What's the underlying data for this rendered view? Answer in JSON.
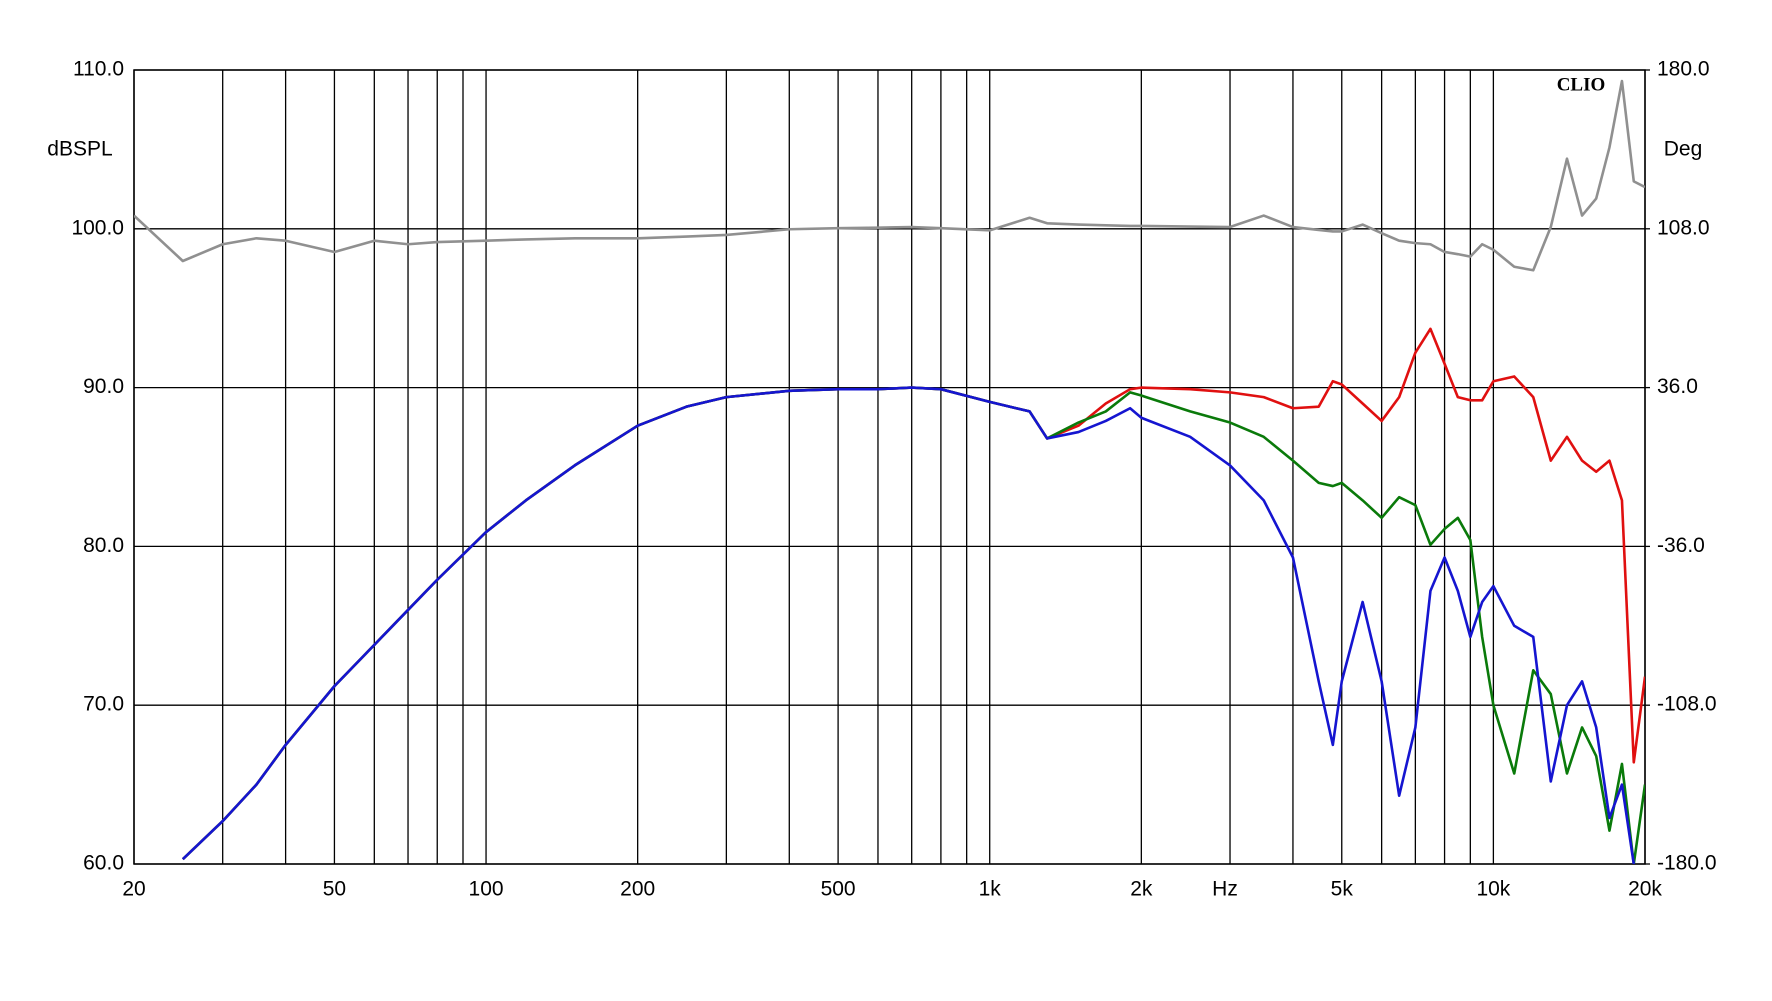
{
  "chart_data": {
    "type": "line",
    "x_label": "Hz",
    "y_label": "dBSPL",
    "y2_label": "Deg",
    "watermark": "CLIO",
    "x_scale": "log",
    "grid": true,
    "xlim": [
      20,
      20000
    ],
    "ylim": [
      60,
      110
    ],
    "y2lim": [
      -180,
      180
    ],
    "xticks": [
      20,
      50,
      100,
      200,
      500,
      {
        "value": 1000,
        "label": "1k"
      },
      {
        "value": 2000,
        "label": "2k"
      },
      {
        "value": 5000,
        "label": "5k"
      },
      {
        "value": 10000,
        "label": "10k"
      },
      {
        "value": 20000,
        "label": "20k"
      }
    ],
    "xminor": [
      30,
      40,
      60,
      70,
      80,
      90,
      300,
      400,
      600,
      700,
      800,
      900,
      3000,
      4000,
      6000,
      7000,
      8000,
      9000
    ],
    "yticks": [
      {
        "value": 60,
        "label": "60.0"
      },
      {
        "value": 70,
        "label": "70.0"
      },
      {
        "value": 80,
        "label": "80.0"
      },
      {
        "value": 90,
        "label": "90.0"
      },
      {
        "value": 100,
        "label": "100.0"
      },
      {
        "value": 110,
        "label": "110.0"
      }
    ],
    "y2ticks": [
      {
        "value": -180,
        "label": "-180.0"
      },
      {
        "value": -108,
        "label": "-108.0"
      },
      {
        "value": -36,
        "label": "-36.0"
      },
      {
        "value": 36,
        "label": "36.0"
      },
      {
        "value": 108,
        "label": "108.0"
      },
      {
        "value": 180,
        "label": "180.0"
      }
    ],
    "x": [
      20,
      25,
      30,
      35,
      40,
      50,
      60,
      70,
      80,
      100,
      120,
      150,
      200,
      250,
      300,
      400,
      500,
      600,
      700,
      800,
      1000,
      1200,
      1300,
      1500,
      1700,
      1900,
      2000,
      2500,
      3000,
      3500,
      4000,
      4500,
      4800,
      5000,
      5500,
      6000,
      6500,
      7000,
      7500,
      8000,
      8500,
      9000,
      9500,
      10000,
      11000,
      12000,
      13000,
      14000,
      15000,
      16000,
      17000,
      18000,
      19000,
      20000
    ],
    "series": [
      {
        "color": "#e01010",
        "values": [
          null,
          60.3,
          62.7,
          65.0,
          67.5,
          71.2,
          73.8,
          76.0,
          77.9,
          80.9,
          82.9,
          85.1,
          87.6,
          88.8,
          89.4,
          89.8,
          89.9,
          89.9,
          90.0,
          89.9,
          89.1,
          88.5,
          86.8,
          87.6,
          89.0,
          89.9,
          90.0,
          89.9,
          89.7,
          89.4,
          88.7,
          88.8,
          90.4,
          90.2,
          89.0,
          87.9,
          89.4,
          92.2,
          93.7,
          91.5,
          89.4,
          89.2,
          89.2,
          90.4,
          90.7,
          89.4,
          85.4,
          86.9,
          85.4,
          84.7,
          85.4,
          82.9,
          66.4,
          71.8
        ]
      },
      {
        "color": "#0a7a0a",
        "values": [
          null,
          60.3,
          62.7,
          65.0,
          67.5,
          71.2,
          73.8,
          76.0,
          77.9,
          80.9,
          82.9,
          85.1,
          87.6,
          88.8,
          89.4,
          89.8,
          89.9,
          89.9,
          90.0,
          89.9,
          89.1,
          88.5,
          86.8,
          87.8,
          88.5,
          89.7,
          89.5,
          88.5,
          87.8,
          86.9,
          85.4,
          84.0,
          83.8,
          84.0,
          82.9,
          81.8,
          83.1,
          82.6,
          80.1,
          81.1,
          81.8,
          80.4,
          74.3,
          70.0,
          65.7,
          72.2,
          70.7,
          65.7,
          68.6,
          66.8,
          62.1,
          66.3,
          60.0,
          65.0
        ]
      },
      {
        "color": "#1515d0",
        "values": [
          null,
          60.3,
          62.7,
          65.0,
          67.5,
          71.2,
          73.8,
          76.0,
          77.9,
          80.9,
          82.9,
          85.1,
          87.6,
          88.8,
          89.4,
          89.8,
          89.9,
          89.9,
          90.0,
          89.9,
          89.1,
          88.5,
          86.8,
          87.2,
          87.9,
          88.7,
          88.1,
          86.9,
          85.1,
          82.9,
          79.3,
          71.5,
          67.5,
          71.5,
          76.5,
          71.5,
          64.3,
          68.6,
          77.2,
          79.3,
          77.2,
          74.3,
          76.5,
          77.5,
          75.0,
          74.3,
          65.2,
          70.0,
          71.5,
          68.6,
          62.9,
          65.0,
          60.0,
          null
        ]
      },
      {
        "color": "#909090",
        "axis": "y2",
        "values": [
          114,
          93.4,
          101,
          103.7,
          102.6,
          97.5,
          102.6,
          101,
          102,
          102.6,
          103.2,
          103.7,
          103.7,
          104.5,
          105.2,
          107.8,
          108.3,
          108.5,
          108.8,
          108.3,
          107.3,
          113,
          110.5,
          109.9,
          109.6,
          109.3,
          109.3,
          109,
          108.8,
          114,
          108.8,
          107.5,
          106.8,
          106.8,
          109.9,
          106,
          102.6,
          101.5,
          101,
          97.5,
          96.5,
          95.4,
          101,
          98.5,
          90.8,
          89.2,
          108.8,
          139.8,
          114,
          121.7,
          144.9,
          175,
          129.5,
          126.9
        ]
      }
    ]
  }
}
